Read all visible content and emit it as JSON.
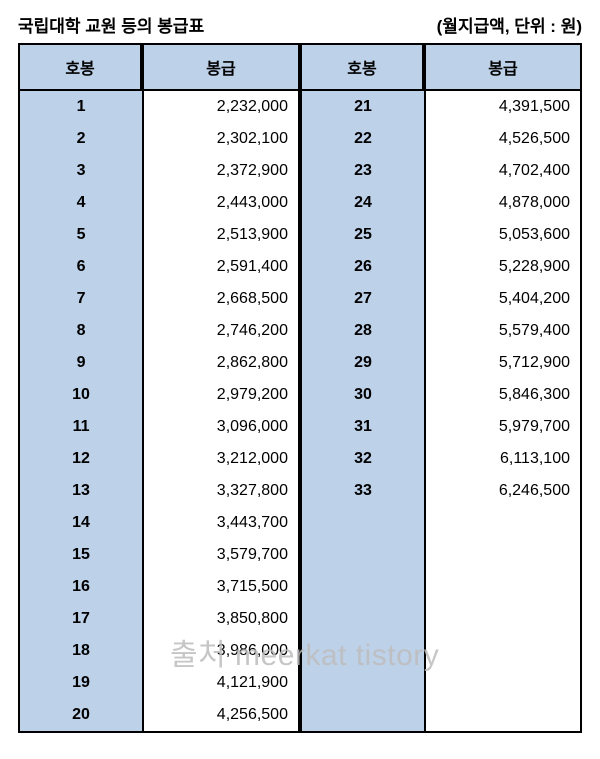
{
  "title_left": "국립대학 교원 등의 봉급표",
  "title_right": "(월지급액, 단위 : 원)",
  "headers": {
    "grade": "호봉",
    "pay": "봉급"
  },
  "colors": {
    "header_bg": "#bdd1e9",
    "grade_bg": "#bdd1e9",
    "border": "#000000",
    "background": "#ffffff",
    "watermark": "#bdbdbd"
  },
  "font": {
    "header_size_pt": 16,
    "body_size_pt": 16,
    "title_size_pt": 17
  },
  "watermark_text": "출처 meerkat tistory",
  "rows_left": [
    {
      "grade": "1",
      "pay": "2,232,000"
    },
    {
      "grade": "2",
      "pay": "2,302,100"
    },
    {
      "grade": "3",
      "pay": "2,372,900"
    },
    {
      "grade": "4",
      "pay": "2,443,000"
    },
    {
      "grade": "5",
      "pay": "2,513,900"
    },
    {
      "grade": "6",
      "pay": "2,591,400"
    },
    {
      "grade": "7",
      "pay": "2,668,500"
    },
    {
      "grade": "8",
      "pay": "2,746,200"
    },
    {
      "grade": "9",
      "pay": "2,862,800"
    },
    {
      "grade": "10",
      "pay": "2,979,200"
    },
    {
      "grade": "11",
      "pay": "3,096,000"
    },
    {
      "grade": "12",
      "pay": "3,212,000"
    },
    {
      "grade": "13",
      "pay": "3,327,800"
    },
    {
      "grade": "14",
      "pay": "3,443,700"
    },
    {
      "grade": "15",
      "pay": "3,579,700"
    },
    {
      "grade": "16",
      "pay": "3,715,500"
    },
    {
      "grade": "17",
      "pay": "3,850,800"
    },
    {
      "grade": "18",
      "pay": "3,986,000"
    },
    {
      "grade": "19",
      "pay": "4,121,900"
    },
    {
      "grade": "20",
      "pay": "4,256,500"
    }
  ],
  "rows_right": [
    {
      "grade": "21",
      "pay": "4,391,500"
    },
    {
      "grade": "22",
      "pay": "4,526,500"
    },
    {
      "grade": "23",
      "pay": "4,702,400"
    },
    {
      "grade": "24",
      "pay": "4,878,000"
    },
    {
      "grade": "25",
      "pay": "5,053,600"
    },
    {
      "grade": "26",
      "pay": "5,228,900"
    },
    {
      "grade": "27",
      "pay": "5,404,200"
    },
    {
      "grade": "28",
      "pay": "5,579,400"
    },
    {
      "grade": "29",
      "pay": "5,712,900"
    },
    {
      "grade": "30",
      "pay": "5,846,300"
    },
    {
      "grade": "31",
      "pay": "5,979,700"
    },
    {
      "grade": "32",
      "pay": "6,113,100"
    },
    {
      "grade": "33",
      "pay": "6,246,500"
    }
  ]
}
